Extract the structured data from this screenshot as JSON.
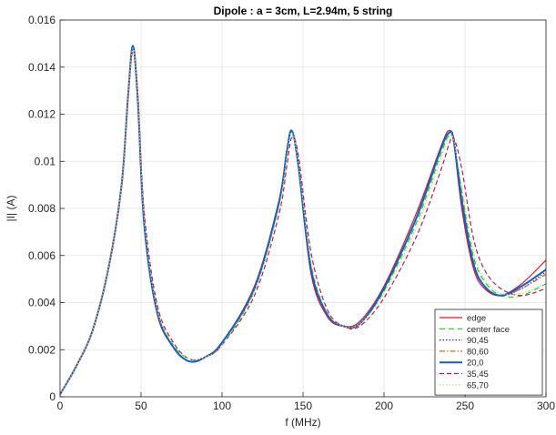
{
  "chart_data": {
    "type": "line",
    "title": "Dipole : a = 3cm, L=2.94m, 5 string",
    "xlabel": "f (MHz)",
    "ylabel": "|I| (A)",
    "xlim": [
      0,
      300
    ],
    "ylim": [
      0,
      0.016
    ],
    "x_ticks": [
      0,
      50,
      100,
      150,
      200,
      250,
      300
    ],
    "x_tick_labels": [
      "0",
      "50",
      "100",
      "150",
      "200",
      "250",
      "300"
    ],
    "y_ticks": [
      0,
      0.002,
      0.004,
      0.006,
      0.008,
      0.01,
      0.012,
      0.014,
      0.016
    ],
    "y_tick_labels": [
      "0",
      "0.002",
      "0.004",
      "0.006",
      "0.008",
      "0.01",
      "0.012",
      "0.014",
      "0.016"
    ],
    "grid": true,
    "legend_position": "bottom-right",
    "series": [
      {
        "name": "edge",
        "color": "#e8141c",
        "dash": "solid",
        "width": 1.2,
        "x": [
          0,
          10,
          20,
          30,
          38,
          42,
          45,
          48,
          52,
          60,
          70,
          80,
          90,
          100,
          120,
          135,
          140,
          143,
          147,
          155,
          165,
          175,
          185,
          200,
          220,
          235,
          240,
          243,
          248,
          255,
          262,
          272,
          285,
          300
        ],
        "y": [
          0.0001,
          0.0013,
          0.0028,
          0.0055,
          0.009,
          0.0128,
          0.0149,
          0.0125,
          0.0072,
          0.0035,
          0.0021,
          0.0015,
          0.0017,
          0.0023,
          0.0047,
          0.0083,
          0.0105,
          0.0113,
          0.0098,
          0.0052,
          0.0034,
          0.003,
          0.0032,
          0.0047,
          0.0078,
          0.0106,
          0.0113,
          0.0108,
          0.008,
          0.0055,
          0.0046,
          0.0043,
          0.0048,
          0.0058
        ]
      },
      {
        "name": "center face",
        "color": "#22c81e",
        "dash": "6,4",
        "width": 1.2,
        "x": [
          0,
          10,
          20,
          30,
          38,
          42,
          45,
          48,
          52,
          60,
          70,
          80,
          90,
          100,
          120,
          135,
          140,
          143,
          147,
          155,
          165,
          175,
          185,
          200,
          220,
          235,
          240,
          243,
          248,
          255,
          262,
          272,
          285,
          300
        ],
        "y": [
          0.0001,
          0.0013,
          0.0028,
          0.0055,
          0.009,
          0.0128,
          0.0148,
          0.0127,
          0.0075,
          0.0037,
          0.0022,
          0.0016,
          0.0017,
          0.0022,
          0.0045,
          0.0081,
          0.0103,
          0.0112,
          0.01,
          0.0056,
          0.0035,
          0.003,
          0.0031,
          0.0045,
          0.0074,
          0.0103,
          0.0111,
          0.0109,
          0.0087,
          0.006,
          0.0049,
          0.0043,
          0.0043,
          0.0048
        ]
      },
      {
        "name": "90,45",
        "color": "#1f1fe0",
        "dash": "1.5,2",
        "width": 1.2,
        "x": [
          0,
          10,
          20,
          30,
          38,
          42,
          45,
          48,
          52,
          60,
          70,
          80,
          90,
          100,
          120,
          135,
          140,
          143,
          147,
          155,
          165,
          175,
          185,
          200,
          220,
          235,
          240,
          243,
          248,
          255,
          262,
          272,
          285,
          300
        ],
        "y": [
          0.0001,
          0.0013,
          0.0028,
          0.0055,
          0.009,
          0.0128,
          0.0149,
          0.0125,
          0.0073,
          0.0036,
          0.0021,
          0.0015,
          0.0017,
          0.0023,
          0.0046,
          0.0082,
          0.0104,
          0.0113,
          0.0099,
          0.0054,
          0.0035,
          0.003,
          0.0031,
          0.0046,
          0.0076,
          0.0105,
          0.0112,
          0.011,
          0.0085,
          0.0058,
          0.0047,
          0.0043,
          0.0046,
          0.0053
        ]
      },
      {
        "name": "80,60",
        "color": "#d86a10",
        "dash": "6,2,1.5,2",
        "width": 1.2,
        "x": [
          0,
          10,
          20,
          30,
          38,
          42,
          45,
          48,
          52,
          60,
          70,
          80,
          90,
          100,
          120,
          135,
          140,
          143,
          147,
          155,
          165,
          175,
          185,
          200,
          220,
          235,
          240,
          243,
          248,
          255,
          262,
          272,
          285,
          300
        ],
        "y": [
          0.0001,
          0.0013,
          0.0028,
          0.0055,
          0.009,
          0.0128,
          0.0149,
          0.0125,
          0.0073,
          0.0036,
          0.0021,
          0.0015,
          0.0017,
          0.0023,
          0.0046,
          0.0082,
          0.0104,
          0.0113,
          0.0099,
          0.0054,
          0.0035,
          0.003,
          0.0031,
          0.0046,
          0.0076,
          0.0105,
          0.0112,
          0.011,
          0.0085,
          0.0058,
          0.0047,
          0.0043,
          0.0046,
          0.0052
        ]
      },
      {
        "name": "20,0",
        "color": "#0f5fd0",
        "dash": "solid",
        "width": 2,
        "x": [
          0,
          10,
          20,
          30,
          38,
          42,
          45,
          48,
          52,
          60,
          70,
          80,
          90,
          100,
          120,
          135,
          140,
          143,
          147,
          155,
          165,
          175,
          185,
          200,
          220,
          235,
          240,
          243,
          248,
          255,
          262,
          272,
          285,
          300
        ],
        "y": [
          0.0001,
          0.0013,
          0.0028,
          0.0055,
          0.009,
          0.0128,
          0.0149,
          0.0126,
          0.0073,
          0.0036,
          0.0021,
          0.0015,
          0.0017,
          0.0023,
          0.0046,
          0.0082,
          0.0104,
          0.0113,
          0.0099,
          0.0054,
          0.0035,
          0.003,
          0.0031,
          0.0046,
          0.0076,
          0.0105,
          0.0112,
          0.0109,
          0.0083,
          0.0057,
          0.0047,
          0.0043,
          0.0047,
          0.0054
        ]
      },
      {
        "name": "35,45",
        "color": "#c8145a",
        "dash": "5,3",
        "width": 1.2,
        "x": [
          0,
          10,
          20,
          30,
          38,
          42,
          45,
          48,
          52,
          60,
          70,
          80,
          90,
          100,
          120,
          135,
          140,
          143,
          147,
          155,
          165,
          175,
          185,
          200,
          220,
          235,
          240,
          243,
          248,
          255,
          262,
          272,
          285,
          300
        ],
        "y": [
          0.0001,
          0.0013,
          0.0028,
          0.0055,
          0.009,
          0.0127,
          0.0147,
          0.0129,
          0.0078,
          0.0039,
          0.0023,
          0.0016,
          0.0017,
          0.0022,
          0.0043,
          0.0077,
          0.0098,
          0.011,
          0.0103,
          0.0061,
          0.0037,
          0.003,
          0.003,
          0.0042,
          0.0068,
          0.0096,
          0.0107,
          0.011,
          0.0097,
          0.0068,
          0.0054,
          0.0046,
          0.0043,
          0.0046
        ]
      },
      {
        "name": "65,70",
        "color": "#a8e65a",
        "dash": "1.5,2",
        "width": 1.2,
        "x": [
          0,
          10,
          20,
          30,
          38,
          42,
          45,
          48,
          52,
          60,
          70,
          80,
          90,
          100,
          120,
          135,
          140,
          143,
          147,
          155,
          165,
          175,
          185,
          200,
          220,
          235,
          240,
          243,
          248,
          255,
          262,
          272,
          285,
          300
        ],
        "y": [
          0.0001,
          0.0013,
          0.0028,
          0.0055,
          0.009,
          0.0128,
          0.0148,
          0.0127,
          0.0075,
          0.0037,
          0.0022,
          0.0016,
          0.0017,
          0.0022,
          0.0045,
          0.008,
          0.0102,
          0.0112,
          0.01,
          0.0057,
          0.0036,
          0.003,
          0.0031,
          0.0044,
          0.0072,
          0.0101,
          0.011,
          0.0109,
          0.0089,
          0.0062,
          0.005,
          0.0044,
          0.0044,
          0.0048
        ]
      }
    ]
  }
}
